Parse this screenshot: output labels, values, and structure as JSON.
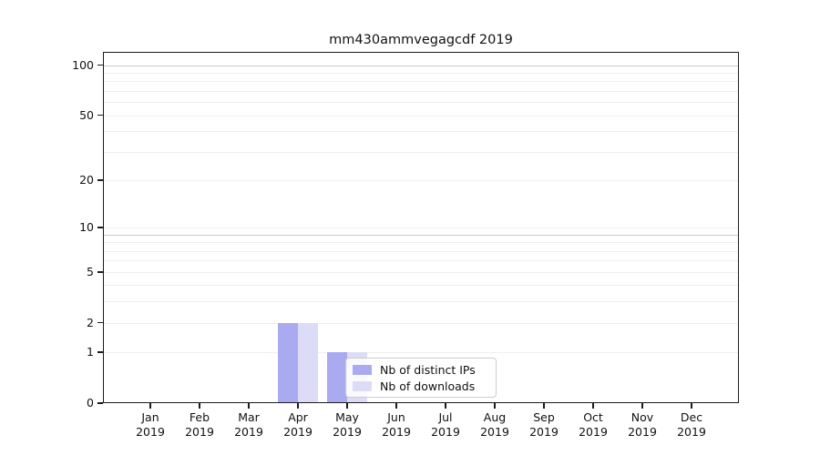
{
  "title": "mm430ammvegagcdf 2019",
  "legend": {
    "items": [
      {
        "label": "Nb of distinct IPs",
        "color": "#aaaaf0"
      },
      {
        "label": "Nb of downloads",
        "color": "#dcdcf7"
      }
    ]
  },
  "chart_data": {
    "type": "bar",
    "title": "mm430ammvegagcdf 2019",
    "categories": [
      {
        "month": "Jan",
        "year": "2019"
      },
      {
        "month": "Feb",
        "year": "2019"
      },
      {
        "month": "Mar",
        "year": "2019"
      },
      {
        "month": "Apr",
        "year": "2019"
      },
      {
        "month": "May",
        "year": "2019"
      },
      {
        "month": "Jun",
        "year": "2019"
      },
      {
        "month": "Jul",
        "year": "2019"
      },
      {
        "month": "Aug",
        "year": "2019"
      },
      {
        "month": "Sep",
        "year": "2019"
      },
      {
        "month": "Oct",
        "year": "2019"
      },
      {
        "month": "Nov",
        "year": "2019"
      },
      {
        "month": "Dec",
        "year": "2019"
      }
    ],
    "series": [
      {
        "name": "Nb of distinct IPs",
        "color": "#aaaaf0",
        "values": [
          0,
          0,
          0,
          2,
          1,
          0,
          0,
          0,
          0,
          0,
          0,
          0
        ]
      },
      {
        "name": "Nb of downloads",
        "color": "#dcdcf7",
        "values": [
          0,
          0,
          0,
          2,
          1,
          0,
          0,
          0,
          0,
          0,
          0,
          0
        ]
      }
    ],
    "yscale": "log1p",
    "yticks": [
      0,
      1,
      2,
      5,
      10,
      20,
      50,
      100
    ],
    "ylim": [
      0,
      120
    ],
    "xlabel": "",
    "ylabel": "",
    "grid": "horizontal",
    "grid_color_minor": "#f0f0f0",
    "grid_color_major": "#c9c9c9",
    "legend_position": "lower-center"
  }
}
